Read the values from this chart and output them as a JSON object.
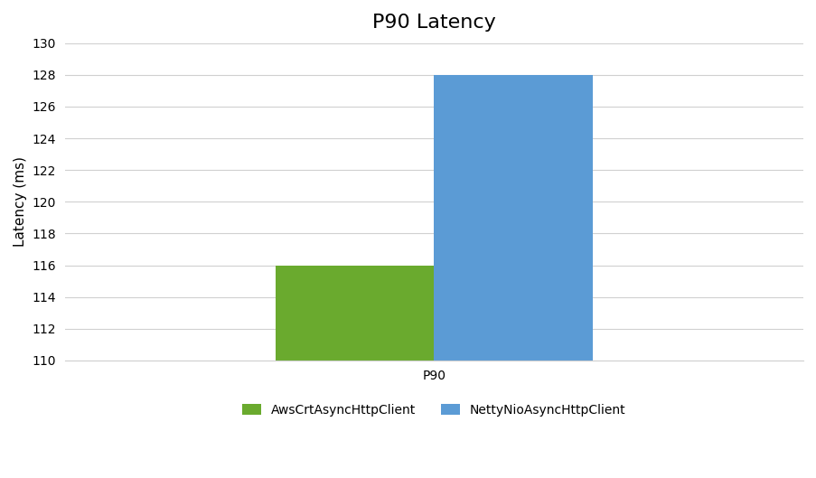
{
  "title": "P90 Latency",
  "xlabel": "P90",
  "ylabel": "Latency (ms)",
  "categories": [
    "P90"
  ],
  "series": [
    {
      "label": "AwsCrtAsyncHttpClient",
      "values": [
        116
      ],
      "color": "#6aaa2e"
    },
    {
      "label": "NettyNioAsyncHttpClient",
      "values": [
        128
      ],
      "color": "#5b9bd5"
    }
  ],
  "ylim": [
    110,
    130
  ],
  "yticks": [
    110,
    112,
    114,
    116,
    118,
    120,
    122,
    124,
    126,
    128,
    130
  ],
  "bar_width": 0.3,
  "legend_loc": "lower center",
  "legend_ncol": 2,
  "background_color": "#ffffff",
  "grid_color": "#d0d0d0",
  "title_fontsize": 16,
  "label_fontsize": 11,
  "tick_fontsize": 10,
  "legend_fontsize": 10
}
